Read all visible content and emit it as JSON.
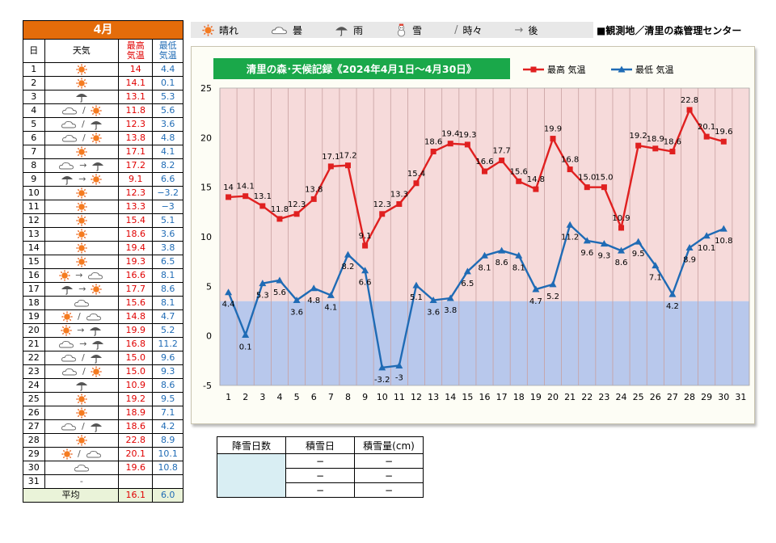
{
  "month_label": "4月",
  "table_headers": {
    "day": "日",
    "weather": "天気",
    "high": "最高\n気温",
    "low": "最低\n気温"
  },
  "days": [
    {
      "day": "1",
      "w": [
        "sun"
      ],
      "hi": "14",
      "lo": "4.4"
    },
    {
      "day": "2",
      "w": [
        "sun"
      ],
      "hi": "14.1",
      "lo": "0.1"
    },
    {
      "day": "3",
      "w": [
        "umbrella"
      ],
      "hi": "13.1",
      "lo": "5.3"
    },
    {
      "day": "4",
      "w": [
        "cloud",
        "/",
        "sun"
      ],
      "hi": "11.8",
      "lo": "5.6"
    },
    {
      "day": "5",
      "w": [
        "cloud",
        "/",
        "umbrella"
      ],
      "hi": "12.3",
      "lo": "3.6"
    },
    {
      "day": "6",
      "w": [
        "cloud",
        "/",
        "sun"
      ],
      "hi": "13.8",
      "lo": "4.8"
    },
    {
      "day": "7",
      "w": [
        "sun"
      ],
      "hi": "17.1",
      "lo": "4.1"
    },
    {
      "day": "8",
      "w": [
        "cloud",
        "→",
        "umbrella"
      ],
      "hi": "17.2",
      "lo": "8.2"
    },
    {
      "day": "9",
      "w": [
        "umbrella",
        "→",
        "sun"
      ],
      "hi": "9.1",
      "lo": "6.6"
    },
    {
      "day": "10",
      "w": [
        "sun"
      ],
      "hi": "12.3",
      "lo": "−3.2"
    },
    {
      "day": "11",
      "w": [
        "sun"
      ],
      "hi": "13.3",
      "lo": "−3"
    },
    {
      "day": "12",
      "w": [
        "sun"
      ],
      "hi": "15.4",
      "lo": "5.1"
    },
    {
      "day": "13",
      "w": [
        "sun"
      ],
      "hi": "18.6",
      "lo": "3.6"
    },
    {
      "day": "14",
      "w": [
        "sun"
      ],
      "hi": "19.4",
      "lo": "3.8"
    },
    {
      "day": "15",
      "w": [
        "sun"
      ],
      "hi": "19.3",
      "lo": "6.5"
    },
    {
      "day": "16",
      "w": [
        "sun",
        "→",
        "cloud"
      ],
      "hi": "16.6",
      "lo": "8.1"
    },
    {
      "day": "17",
      "w": [
        "umbrella",
        "→",
        "sun"
      ],
      "hi": "17.7",
      "lo": "8.6"
    },
    {
      "day": "18",
      "w": [
        "cloud"
      ],
      "hi": "15.6",
      "lo": "8.1"
    },
    {
      "day": "19",
      "w": [
        "sun",
        "/",
        "cloud"
      ],
      "hi": "14.8",
      "lo": "4.7"
    },
    {
      "day": "20",
      "w": [
        "sun",
        "→",
        "umbrella"
      ],
      "hi": "19.9",
      "lo": "5.2"
    },
    {
      "day": "21",
      "w": [
        "cloud",
        "→",
        "umbrella"
      ],
      "hi": "16.8",
      "lo": "11.2"
    },
    {
      "day": "22",
      "w": [
        "cloud",
        "/",
        "umbrella"
      ],
      "hi": "15.0",
      "lo": "9.6"
    },
    {
      "day": "23",
      "w": [
        "cloud",
        "/",
        "sun"
      ],
      "hi": "15.0",
      "lo": "9.3"
    },
    {
      "day": "24",
      "w": [
        "umbrella"
      ],
      "hi": "10.9",
      "lo": "8.6"
    },
    {
      "day": "25",
      "w": [
        "sun"
      ],
      "hi": "19.2",
      "lo": "9.5"
    },
    {
      "day": "26",
      "w": [
        "sun"
      ],
      "hi": "18.9",
      "lo": "7.1"
    },
    {
      "day": "27",
      "w": [
        "cloud",
        "/",
        "umbrella"
      ],
      "hi": "18.6",
      "lo": "4.2"
    },
    {
      "day": "28",
      "w": [
        "sun"
      ],
      "hi": "22.8",
      "lo": "8.9"
    },
    {
      "day": "29",
      "w": [
        "sun",
        "/",
        "cloud"
      ],
      "hi": "20.1",
      "lo": "10.1"
    },
    {
      "day": "30",
      "w": [
        "cloud"
      ],
      "hi": "19.6",
      "lo": "10.8"
    },
    {
      "day": "31",
      "w": [
        "-"
      ],
      "hi": "",
      "lo": ""
    }
  ],
  "average": {
    "label": "平均",
    "hi": "16.1",
    "lo": "6.0"
  },
  "legend": [
    {
      "icon": "sun",
      "label": "晴れ"
    },
    {
      "icon": "cloud",
      "label": "曇"
    },
    {
      "icon": "umbrella",
      "label": "雨"
    },
    {
      "icon": "snowman",
      "label": "雪"
    },
    {
      "icon": "/",
      "label": "時々"
    },
    {
      "icon": "→",
      "label": "後"
    }
  ],
  "station": "■観測地／清里の森管理センター",
  "snow_table": {
    "headers": [
      "降雪日数",
      "積雪日",
      "積雪量(cm)"
    ],
    "rows": [
      [
        "−",
        "−"
      ],
      [
        "−",
        "−"
      ],
      [
        "−",
        "−"
      ]
    ]
  },
  "colors": {
    "high": "#e02020",
    "low": "#1f6bb5",
    "warm_bg": "#f6dada",
    "cold_bg": "#b8c8ec",
    "title_bg": "#1aa84a"
  },
  "chart_data": {
    "type": "line",
    "title": "清里の森･天候記録《2024年4月1日～4月30日》",
    "x": [
      1,
      2,
      3,
      4,
      5,
      6,
      7,
      8,
      9,
      10,
      11,
      12,
      13,
      14,
      15,
      16,
      17,
      18,
      19,
      20,
      21,
      22,
      23,
      24,
      25,
      26,
      27,
      28,
      29,
      30
    ],
    "x_ticks": [
      1,
      2,
      3,
      4,
      5,
      6,
      7,
      8,
      9,
      10,
      11,
      12,
      13,
      14,
      15,
      16,
      17,
      18,
      19,
      20,
      21,
      22,
      23,
      24,
      25,
      26,
      27,
      28,
      29,
      30,
      31
    ],
    "ylim": [
      -5,
      25
    ],
    "y_ticks": [
      -5,
      0,
      5,
      10,
      15,
      20,
      25
    ],
    "series": [
      {
        "name": "最高 気温",
        "color": "#e02020",
        "marker": "square",
        "values": [
          14,
          14.1,
          13.1,
          11.8,
          12.3,
          13.8,
          17.1,
          17.2,
          9.1,
          12.3,
          13.3,
          15.4,
          18.6,
          19.4,
          19.3,
          16.6,
          17.7,
          15.6,
          14.8,
          19.9,
          16.8,
          15.0,
          15.0,
          10.9,
          19.2,
          18.9,
          18.6,
          22.8,
          20.1,
          19.6
        ],
        "labels": [
          "14",
          "14.1",
          "13.1",
          "11.8",
          "12.3",
          "13.8",
          "17.1",
          "17.2",
          "9.1",
          "12.3",
          "13.3",
          "15.4",
          "18.6",
          "19.4",
          "19.3",
          "16.6",
          "17.7",
          "15.6",
          "14.8",
          "19.9",
          "16.8",
          "15.0",
          "15.0",
          "10.9",
          "19.2",
          "18.9",
          "18.6",
          "22.8",
          "20.1",
          "19.6"
        ]
      },
      {
        "name": "最低 気温",
        "color": "#1f6bb5",
        "marker": "triangle",
        "values": [
          4.4,
          0.1,
          5.3,
          5.6,
          3.6,
          4.8,
          4.1,
          8.2,
          6.6,
          -3.2,
          -3,
          5.1,
          3.6,
          3.8,
          6.5,
          8.1,
          8.6,
          8.1,
          4.7,
          5.2,
          11.2,
          9.6,
          9.3,
          8.6,
          9.5,
          7.1,
          4.2,
          8.9,
          10.1,
          10.8
        ],
        "labels": [
          "4.4",
          "0.1",
          "5.3",
          "5.6",
          "3.6",
          "4.8",
          "4.1",
          "8.2",
          "6.6",
          "-3.2",
          "-3",
          "5.1",
          "3.6",
          "3.8",
          "6.5",
          "8.1",
          "8.6",
          "8.1",
          "4.7",
          "5.2",
          "11.2",
          "9.6",
          "9.3",
          "8.6",
          "9.5",
          "7.1",
          "4.2",
          "8.9",
          "10.1",
          "10.8"
        ]
      }
    ],
    "background_bands": [
      {
        "from": 3.5,
        "to": 25,
        "color": "#f6dada"
      },
      {
        "from": -5,
        "to": 3.5,
        "color": "#b8c8ec"
      }
    ],
    "grid": "vertical",
    "legend_position": "top-right"
  }
}
